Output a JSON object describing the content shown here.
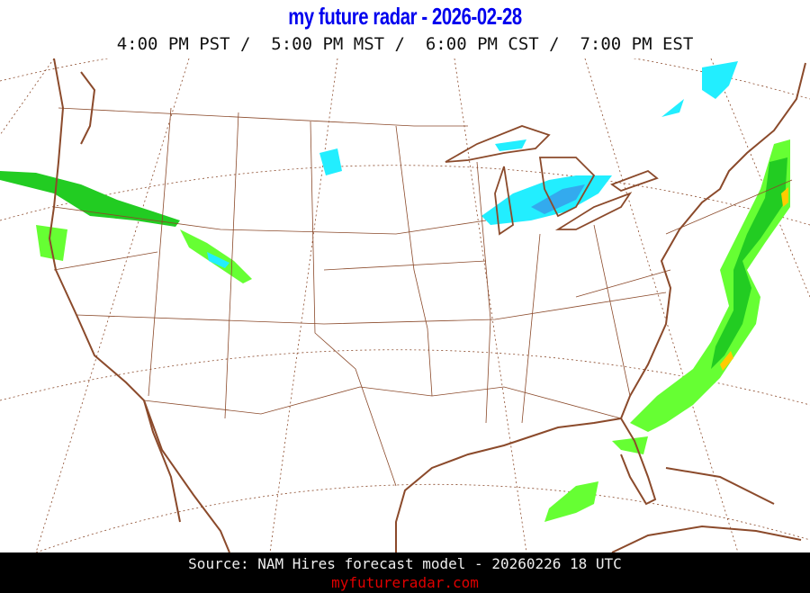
{
  "header": {
    "title": "my future radar - 2026-02-28",
    "times": "4:00 PM PST /  5:00 PM MST /  6:00 PM CST /  7:00 PM EST"
  },
  "map": {
    "region": "Continental United States",
    "colors": {
      "border": "#8b4a2b",
      "rain_light": "#66ff33",
      "rain_moderate": "#22cc22",
      "rain_heavy": "#ffcc00",
      "snow_light": "#22eeff",
      "snow_moderate": "#33aaee"
    }
  },
  "footer": {
    "source": "Source: NAM Hires forecast model - 20260226 18 UTC",
    "site": "myfutureradar.com"
  }
}
